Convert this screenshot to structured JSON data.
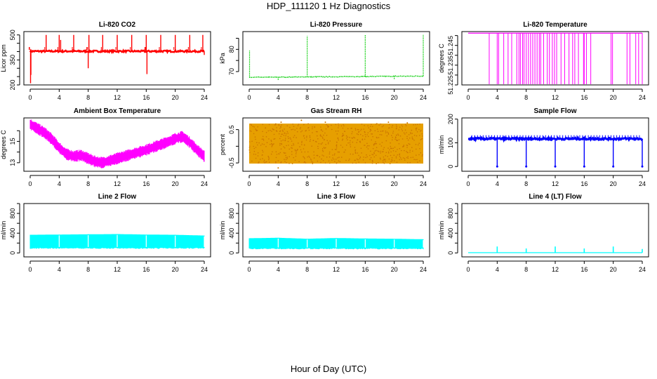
{
  "figure": {
    "title": "HDP_111120  1 Hz Diagnostics",
    "xlabel": "Hour of Day (UTC)"
  },
  "chart_data": [
    {
      "type": "line",
      "title": "Li-820 CO2",
      "ylabel": "Licor ppm",
      "color": "#ff0000",
      "xlim": [
        0,
        24
      ],
      "ylim": [
        200,
        520
      ],
      "xticks": [
        0,
        4,
        8,
        12,
        16,
        20,
        24
      ],
      "yticks": [
        200,
        250,
        300,
        350,
        400,
        450,
        500
      ],
      "ytick_labels": [
        "200",
        "",
        "",
        "350",
        "",
        "",
        "500"
      ],
      "series": [
        {
          "name": "CO2",
          "base": 402,
          "noise": 5,
          "spikes": [
            [
              0.05,
              210
            ],
            [
              0.1,
              260
            ],
            [
              2.2,
              500
            ],
            [
              4.0,
              500
            ],
            [
              4.2,
              470
            ],
            [
              6.0,
              500
            ],
            [
              8.0,
              300
            ],
            [
              8.1,
              500
            ],
            [
              10.0,
              500
            ],
            [
              12.0,
              500
            ],
            [
              14.0,
              500
            ],
            [
              16.0,
              500
            ],
            [
              16.1,
              265
            ],
            [
              18.0,
              500
            ],
            [
              20.0,
              500
            ],
            [
              22.0,
              500
            ],
            [
              23.8,
              500
            ],
            [
              24.0,
              380
            ]
          ]
        }
      ]
    },
    {
      "type": "line",
      "title": "Li-820 Pressure",
      "ylabel": "kPa",
      "color": "#00cc00",
      "xlim": [
        0,
        24
      ],
      "ylim": [
        64,
        88
      ],
      "xticks": [
        0,
        4,
        8,
        12,
        16,
        20,
        24
      ],
      "yticks": [
        70,
        75,
        80,
        85
      ],
      "ytick_labels": [
        "70",
        "",
        "80",
        ""
      ],
      "series": [
        {
          "name": "Pressure",
          "base": 67.4,
          "drift": 0.6,
          "spikes": [
            [
              0.05,
              79.5
            ],
            [
              4.0,
              66.0
            ],
            [
              8.0,
              86.0
            ],
            [
              16.0,
              86.5
            ],
            [
              20.0,
              66.5
            ],
            [
              24.0,
              86.5
            ]
          ]
        }
      ]
    },
    {
      "type": "line",
      "title": "Li-820 Temperature",
      "ylabel": "degrees C",
      "color": "#ff00ff",
      "xlim": [
        0,
        24
      ],
      "ylim": [
        51.225,
        51.252
      ],
      "xticks": [
        0,
        4,
        8,
        12,
        16,
        20,
        24
      ],
      "yticks": [
        51.225,
        51.23,
        51.235,
        51.24,
        51.245,
        51.25
      ],
      "ytick_labels": [
        "51.225",
        "",
        "51.235",
        "",
        "51.245",
        ""
      ],
      "series": [
        {
          "name": "Temperature",
          "base": 51.2512,
          "low": 51.225,
          "drops": [
            2.9,
            4.0,
            4.2,
            4.9,
            5.5,
            6.0,
            6.7,
            7.0,
            7.2,
            7.5,
            7.7,
            8.0,
            8.3,
            8.6,
            8.9,
            9.2,
            9.5,
            9.8,
            10.0,
            10.4,
            10.9,
            11.2,
            11.6,
            11.9,
            12.2,
            12.8,
            13.3,
            13.9,
            14.4,
            14.7,
            15.2,
            15.9,
            16.0,
            16.3,
            16.9,
            19.7,
            19.9,
            21.9,
            22.3,
            23.1,
            23.5,
            24.0
          ]
        }
      ]
    },
    {
      "type": "line",
      "title": "Ambient Box Temperature",
      "ylabel": "degrees C",
      "color": "#ff00ff",
      "xlim": [
        0,
        24
      ],
      "ylim": [
        12.2,
        17.2
      ],
      "xticks": [
        0,
        4,
        8,
        12,
        16,
        20,
        24
      ],
      "yticks": [
        13,
        14,
        15,
        16
      ],
      "ytick_labels": [
        "13",
        "",
        "15",
        ""
      ],
      "series": [
        {
          "name": "Box Temperature",
          "band": 0.55,
          "x": [
            0,
            1,
            2,
            3,
            4,
            5,
            6,
            7,
            8,
            9,
            10,
            11,
            12,
            13,
            14,
            15,
            16,
            17,
            18,
            19,
            20,
            21,
            22,
            23,
            24
          ],
          "y": [
            16.6,
            16.2,
            15.8,
            15.2,
            14.4,
            13.8,
            13.6,
            13.7,
            13.4,
            13.1,
            13.0,
            13.2,
            13.4,
            13.6,
            13.8,
            14.0,
            14.2,
            14.45,
            14.7,
            14.95,
            15.25,
            15.45,
            14.9,
            14.2,
            13.6
          ]
        }
      ]
    },
    {
      "type": "scatter",
      "title": "Gas Stream RH",
      "ylabel": "percent",
      "color": "#e69f00",
      "color2": "#cc7700",
      "xlim": [
        0,
        24
      ],
      "ylim": [
        -0.75,
        0.85
      ],
      "xticks": [
        0,
        4,
        8,
        12,
        16,
        20,
        24
      ],
      "yticks": [
        -0.5,
        0,
        0.5
      ],
      "ytick_labels": [
        "-0.5",
        "",
        "0.5"
      ],
      "series": [
        {
          "name": "RH",
          "min": -0.52,
          "max": 0.68,
          "outliers": [
            [
              4.0,
              -0.65
            ],
            [
              4.4,
              0.72
            ],
            [
              7.2,
              0.78
            ],
            [
              10.5,
              0.72
            ],
            [
              19.2,
              0.72
            ],
            [
              21.8,
              0.7
            ]
          ]
        }
      ]
    },
    {
      "type": "line",
      "title": "Sample Flow",
      "ylabel": "ml/min",
      "color": "#0000ff",
      "xlim": [
        0,
        24
      ],
      "ylim": [
        -20,
        205
      ],
      "xticks": [
        0,
        4,
        8,
        12,
        16,
        20,
        24
      ],
      "yticks": [
        0,
        100,
        200
      ],
      "ytick_labels": [
        "0",
        "100",
        "200"
      ],
      "series": [
        {
          "name": "Sample Flow",
          "base": 117,
          "noise": 4,
          "bump": 132,
          "drops": [
            [
              4.0,
              0
            ],
            [
              8.0,
              0
            ],
            [
              12.0,
              0
            ],
            [
              16.0,
              0
            ],
            [
              20.0,
              0
            ],
            [
              24.0,
              0
            ]
          ]
        }
      ]
    },
    {
      "type": "area",
      "title": "Line 2 Flow",
      "ylabel": "ml/min",
      "color": "#00ffff",
      "xlim": [
        0,
        24
      ],
      "ylim": [
        -80,
        1000
      ],
      "xticks": [
        0,
        4,
        8,
        12,
        16,
        20,
        24
      ],
      "yticks": [
        0,
        200,
        400,
        600,
        800,
        1000
      ],
      "ytick_labels": [
        "0",
        "",
        "400",
        "",
        "800",
        ""
      ],
      "series": [
        {
          "name": "Line 2 Flow",
          "low": 100,
          "x": [
            0,
            4,
            8,
            12,
            16,
            20,
            24
          ],
          "high": [
            360,
            365,
            370,
            375,
            365,
            360,
            345
          ],
          "gaps": [
            4.0,
            8.0,
            12.0,
            16.0,
            20.0,
            24.0
          ]
        }
      ]
    },
    {
      "type": "area",
      "title": "Line 3 Flow",
      "ylabel": "ml/min",
      "color": "#00ffff",
      "xlim": [
        0,
        24
      ],
      "ylim": [
        -80,
        1000
      ],
      "xticks": [
        0,
        4,
        8,
        12,
        16,
        20,
        24
      ],
      "yticks": [
        0,
        200,
        400,
        600,
        800,
        1000
      ],
      "ytick_labels": [
        "0",
        "",
        "400",
        "",
        "800",
        ""
      ],
      "series": [
        {
          "name": "Line 3 Flow",
          "low": 90,
          "x": [
            0,
            4,
            8,
            12,
            16,
            20,
            24
          ],
          "high": [
            290,
            300,
            280,
            295,
            285,
            280,
            270
          ],
          "gaps": [
            4.0,
            8.0,
            12.0,
            16.0,
            20.0,
            24.0
          ]
        }
      ]
    },
    {
      "type": "line",
      "title": "Line 4 (LT) Flow",
      "ylabel": "ml/min",
      "color": "#00ffff",
      "xlim": [
        0,
        24
      ],
      "ylim": [
        -80,
        1000
      ],
      "xticks": [
        0,
        4,
        8,
        12,
        16,
        20,
        24
      ],
      "yticks": [
        0,
        200,
        400,
        600,
        800,
        1000
      ],
      "ytick_labels": [
        "0",
        "",
        "400",
        "",
        "800",
        ""
      ],
      "series": [
        {
          "name": "Line 4 Flow",
          "base": 5,
          "spikes": [
            [
              4.0,
              130
            ],
            [
              8.0,
              90
            ],
            [
              12.0,
              130
            ],
            [
              16.0,
              90
            ],
            [
              20.0,
              130
            ],
            [
              24.0,
              80
            ]
          ]
        }
      ]
    }
  ]
}
